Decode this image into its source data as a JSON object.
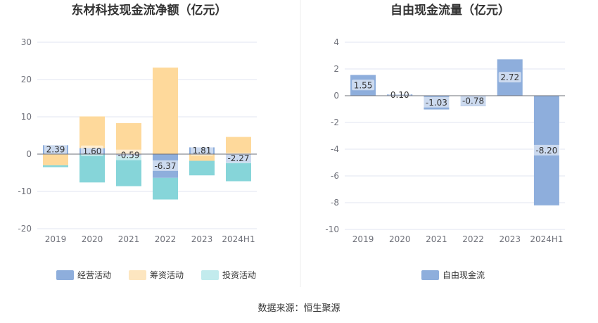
{
  "source": "数据来源：恒生聚源",
  "chart_data": [
    {
      "type": "bar",
      "stacked": true,
      "title": "东材科技现金流净额（亿元）",
      "categories": [
        "2019",
        "2020",
        "2021",
        "2022",
        "2023",
        "2024H1"
      ],
      "ylim": [
        -20,
        30
      ],
      "yticks": [
        -20,
        -10,
        0,
        10,
        20,
        30
      ],
      "series": [
        {
          "name": "经营活动",
          "color": "#8eaedc",
          "values": [
            2.39,
            1.6,
            -0.59,
            -6.37,
            1.81,
            -2.27
          ],
          "labels": [
            "2.39",
            "1.60",
            "-0.59",
            "-6.37",
            "1.81",
            "-2.27"
          ],
          "show_labels": true
        },
        {
          "name": "筹资活动",
          "color": "#fed99b",
          "legend_color": "#fde6c0",
          "values": [
            -3.0,
            8.5,
            8.3,
            23.2,
            -1.8,
            4.6
          ],
          "show_labels": false
        },
        {
          "name": "投资活动",
          "color": "#86d5d9",
          "legend_color": "#c2ebed",
          "values": [
            -0.5,
            -7.6,
            -8.0,
            -5.8,
            -3.9,
            -5.0
          ],
          "show_labels": false
        }
      ],
      "grid": true,
      "legend": "bottom"
    },
    {
      "type": "bar",
      "title": "自由现金流量（亿元）",
      "categories": [
        "2019",
        "2020",
        "2021",
        "2022",
        "2023",
        "2024H1"
      ],
      "ylim": [
        -10,
        4
      ],
      "yticks": [
        -10,
        -8,
        -6,
        -4,
        -2,
        0,
        2,
        4
      ],
      "series": [
        {
          "name": "自由现金流",
          "color": "#8eaedc",
          "values": [
            1.55,
            0.1,
            -1.03,
            -0.78,
            2.72,
            -8.2
          ],
          "labels": [
            "1.55",
            "0.10",
            "-1.03",
            "-0.78",
            "2.72",
            "-8.20"
          ],
          "show_labels": true
        }
      ],
      "grid": true,
      "legend": "bottom"
    }
  ]
}
